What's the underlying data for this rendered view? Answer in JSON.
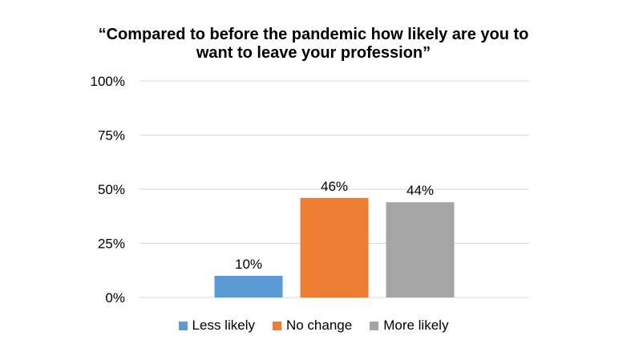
{
  "chart_data": {
    "type": "bar",
    "title_lines": [
      "“Compared to before the pandemic how likely are you to",
      "want to leave your profession”"
    ],
    "categories": [
      "Less likely",
      "No change",
      "More likely"
    ],
    "values": [
      10,
      46,
      44
    ],
    "value_labels": [
      "10%",
      "46%",
      "44%"
    ],
    "colors": [
      "#5b9bd5",
      "#ed7d31",
      "#a5a5a5"
    ],
    "ylim": [
      0,
      100
    ],
    "yticks": [
      0,
      25,
      50,
      75,
      100
    ],
    "ytick_labels": [
      "0%",
      "25%",
      "50%",
      "75%",
      "100%"
    ],
    "grid": true,
    "gridline_color": "#d9d9d9",
    "legend_position": "bottom",
    "xlabel": "",
    "ylabel": ""
  }
}
